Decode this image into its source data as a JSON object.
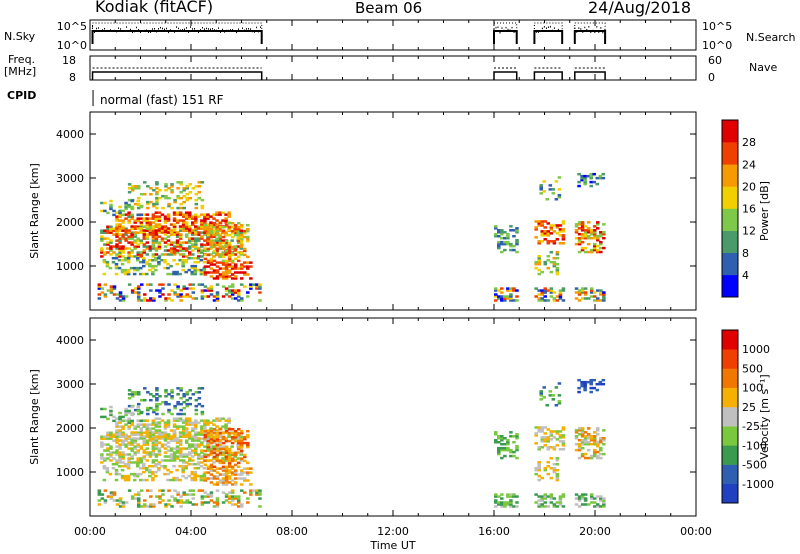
{
  "header": {
    "title": "Kodiak (fitACF)",
    "beam": "Beam 06",
    "date": "24/Aug/2018"
  },
  "panel_labels": {
    "nsky": "N.Sky",
    "nsearch": "N.Search",
    "freq_line1": "Freq.",
    "freq_line2": "[MHz]",
    "nave": "Nave",
    "cpid": "CPID",
    "cpid_value": "normal (fast) 151 RF"
  },
  "colors": {
    "power_scale": [
      "#0000ff",
      "#2f5fb0",
      "#4a9a6a",
      "#7ec84a",
      "#f0d000",
      "#f59a00",
      "#f04000",
      "#e00000"
    ],
    "velocity_scale": [
      "#e00000",
      "#f04000",
      "#f07800",
      "#f5b000",
      "#c0c0c0",
      "#7ac840",
      "#3a9a50",
      "#2f5fb0",
      "#2040c0"
    ]
  },
  "chart_data": [
    {
      "type": "line",
      "name": "noise-panel",
      "ylabel_left": "N.Sky",
      "ylabel_right": "N.Search",
      "left_ticks": [
        "10^5",
        "10^0"
      ],
      "right_ticks": [
        "10^5",
        "10^0"
      ],
      "active_intervals_hours": [
        [
          0.1,
          6.8
        ],
        [
          16.0,
          16.9
        ],
        [
          17.6,
          18.7
        ],
        [
          19.2,
          20.4
        ]
      ]
    },
    {
      "type": "line",
      "name": "freq-nave-panel",
      "ylabel_left": "Freq. [MHz]",
      "ylabel_right": "Nave",
      "left_ticks": [
        "18",
        "8"
      ],
      "right_ticks": [
        "60",
        "0"
      ],
      "active_intervals_hours": [
        [
          0.1,
          6.8
        ],
        [
          16.0,
          16.9
        ],
        [
          17.6,
          18.7
        ],
        [
          19.2,
          20.4
        ]
      ]
    },
    {
      "type": "heatmap",
      "name": "power",
      "ylabel": "Slant Range [km]",
      "yticks": [
        "1000",
        "2000",
        "3000",
        "4000"
      ],
      "ylim": [
        0,
        4500
      ],
      "colorbar_label": "Power [dB]",
      "colorbar_ticks": [
        "4",
        "8",
        "12",
        "16",
        "20",
        "24",
        "28"
      ],
      "xlim_hours": [
        0,
        24
      ]
    },
    {
      "type": "heatmap",
      "name": "velocity",
      "ylabel": "Slant Range [km]",
      "yticks": [
        "1000",
        "2000",
        "3000",
        "4000"
      ],
      "ylim": [
        0,
        4500
      ],
      "colorbar_label": "Velocity [m s⁻¹]",
      "colorbar_ticks": [
        "1000",
        "500",
        "100",
        "25",
        "-25",
        "-100",
        "-500",
        "-1000"
      ],
      "xlim_hours": [
        0,
        24
      ],
      "xlabel": "Time UT",
      "xticks": [
        "00:00",
        "04:00",
        "08:00",
        "12:00",
        "16:00",
        "20:00",
        "00:00"
      ]
    }
  ]
}
